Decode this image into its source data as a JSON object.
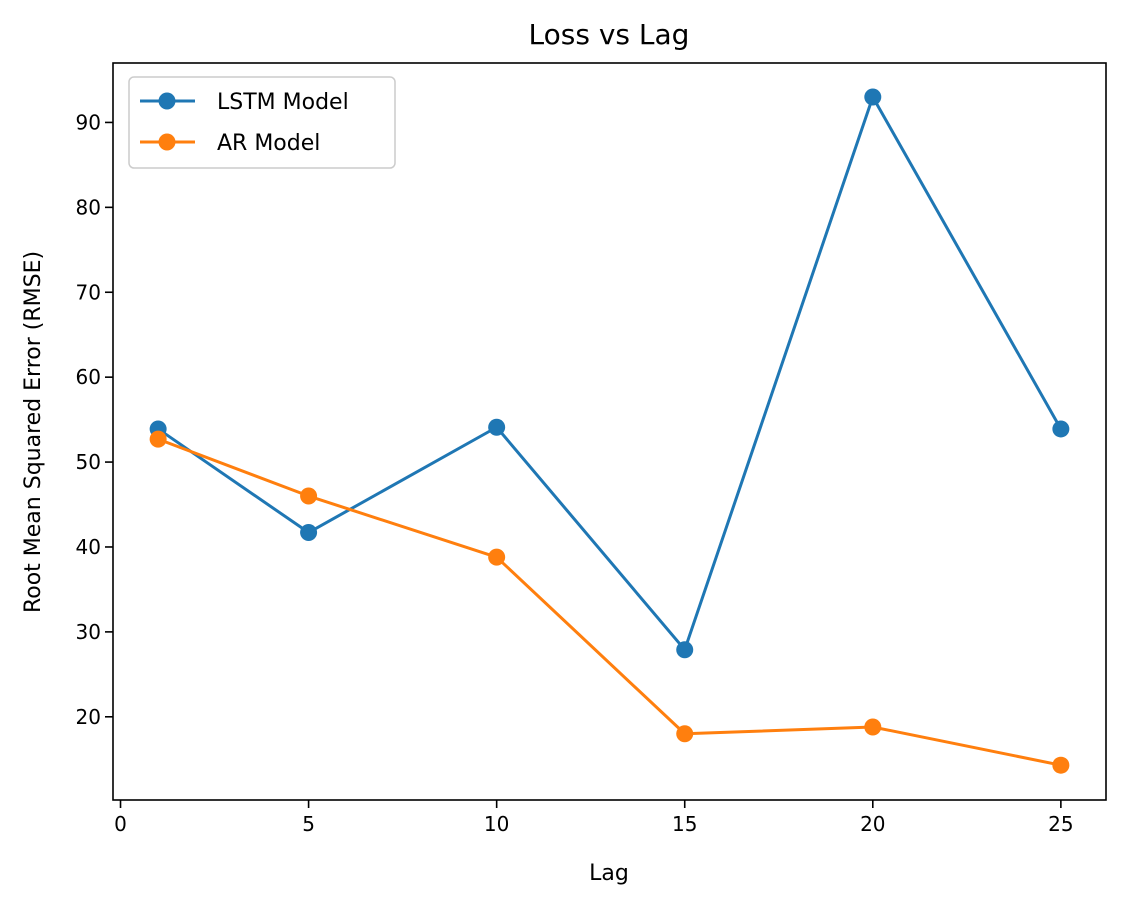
{
  "chart_data": {
    "type": "line",
    "title": "Loss vs Lag",
    "xlabel": "Lag",
    "ylabel": "Root Mean Squared Error (RMSE)",
    "x": [
      1,
      5,
      10,
      15,
      20,
      25
    ],
    "xlim": [
      -0.2,
      26.2
    ],
    "ylim": [
      10.2,
      97
    ],
    "xticks": [
      0,
      5,
      10,
      15,
      20,
      25
    ],
    "yticks": [
      20,
      30,
      40,
      50,
      60,
      70,
      80,
      90
    ],
    "grid": false,
    "legend_position": "top-left",
    "series": [
      {
        "name": "LSTM Model",
        "color": "#1f77b4",
        "values": [
          53.9,
          41.7,
          54.1,
          27.9,
          93.0,
          53.9
        ]
      },
      {
        "name": "AR Model",
        "color": "#ff7f0e",
        "values": [
          52.7,
          46.0,
          38.8,
          18.0,
          18.8,
          14.3
        ]
      }
    ]
  }
}
